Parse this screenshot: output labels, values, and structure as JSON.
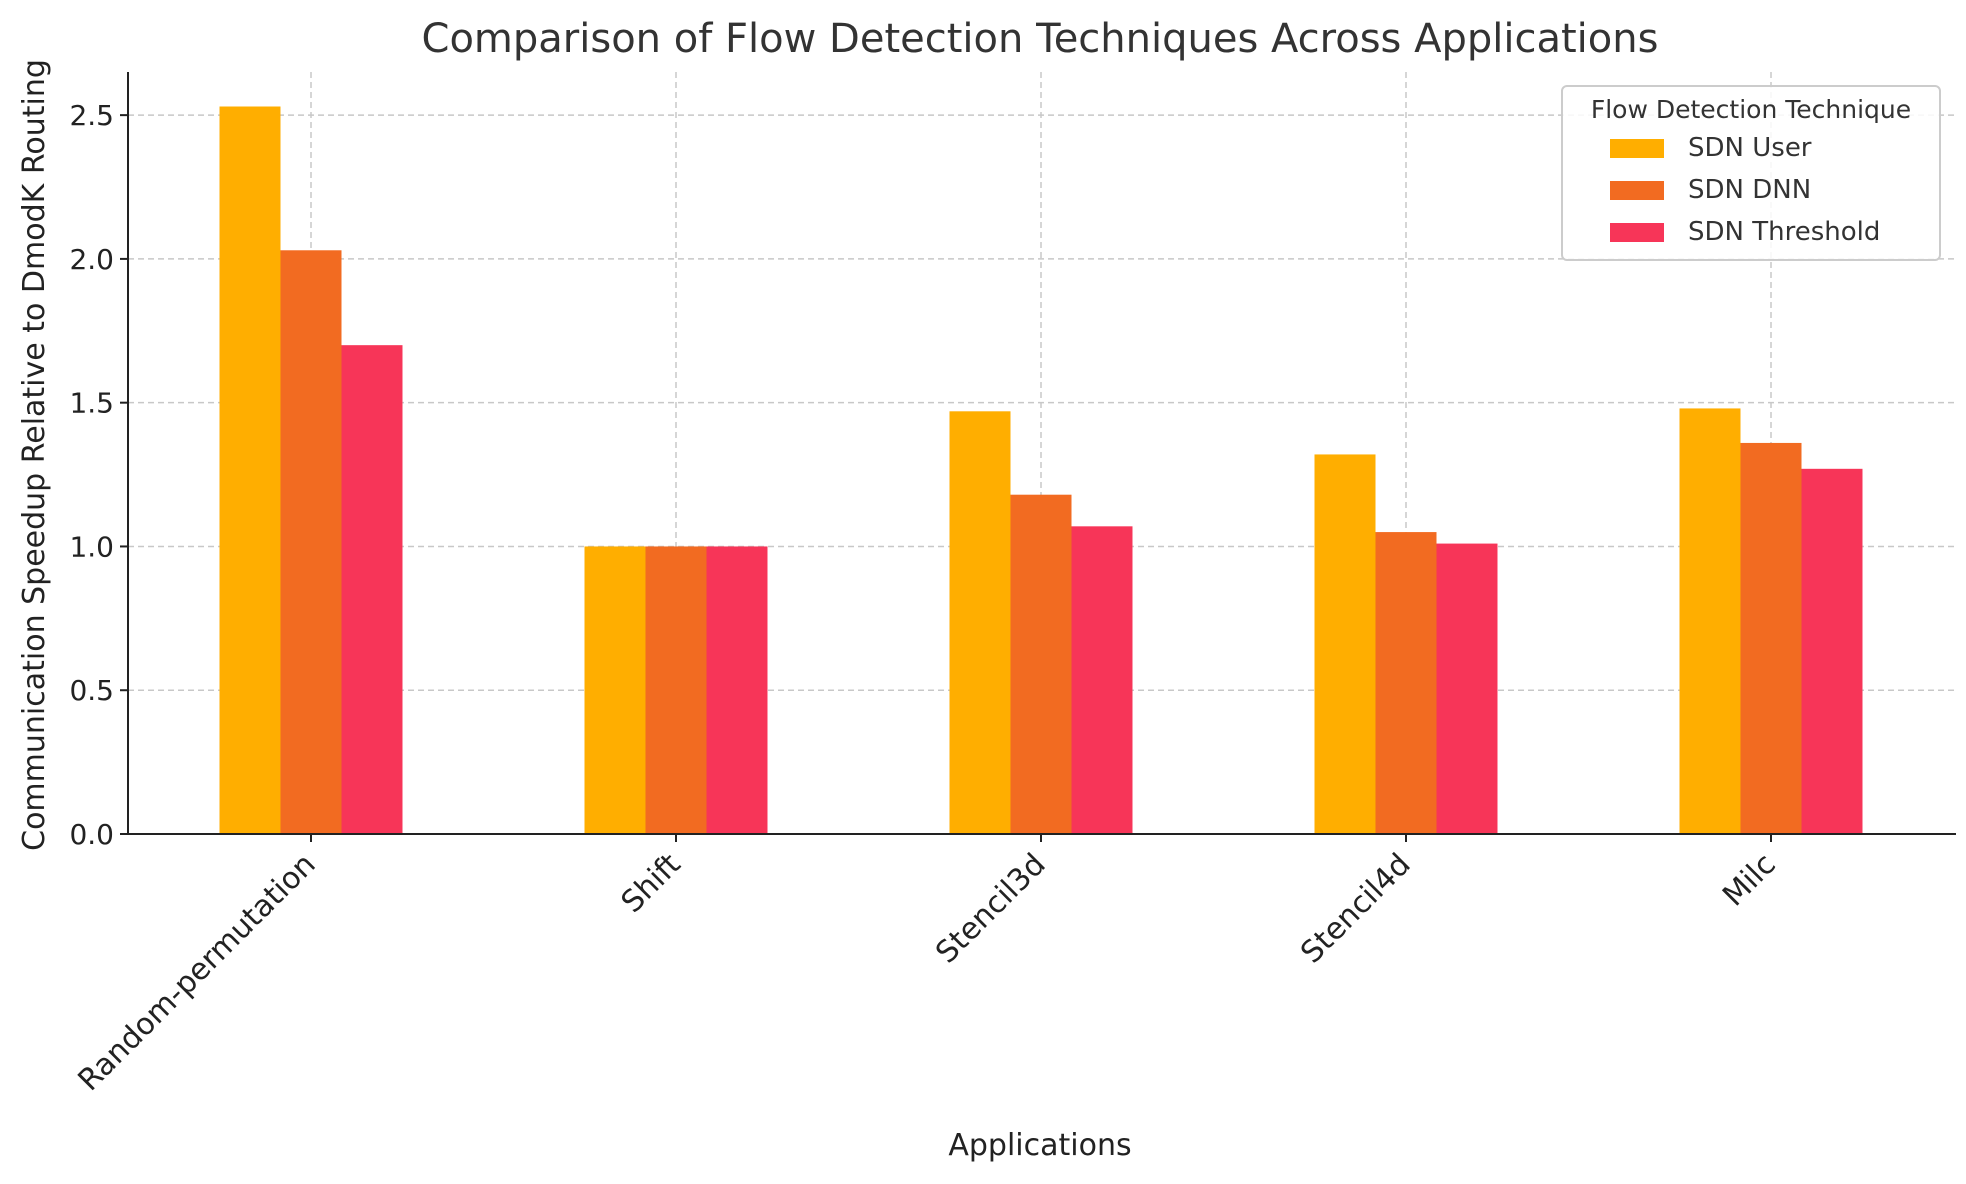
{
  "chart_data": {
    "type": "bar",
    "title": "Comparison of Flow Detection Techniques Across Applications",
    "xlabel": "Applications",
    "ylabel": "Communication Speedup Relative to DmodK Routing",
    "categories": [
      "Random-permutation",
      "Shift",
      "Stencil3d",
      "Stencil4d",
      "Milc"
    ],
    "series": [
      {
        "name": "SDN User",
        "color": "#FFAE00",
        "values": [
          2.53,
          1.0,
          1.47,
          1.32,
          1.48
        ]
      },
      {
        "name": "SDN DNN",
        "color": "#F26B21",
        "values": [
          2.03,
          1.0,
          1.18,
          1.05,
          1.36
        ]
      },
      {
        "name": "SDN Threshold",
        "color": "#F73558",
        "values": [
          1.7,
          1.0,
          1.07,
          1.01,
          1.27
        ]
      }
    ],
    "ylim": [
      0,
      2.65
    ],
    "yticks": [
      0.0,
      0.5,
      1.0,
      1.5,
      2.0,
      2.5
    ],
    "ytick_labels": [
      "0.0",
      "0.5",
      "1.0",
      "1.5",
      "2.0",
      "2.5"
    ],
    "grid": true,
    "legend": {
      "title": "Flow Detection Technique",
      "position": "top-right"
    },
    "x_tick_rotation": "45°"
  }
}
